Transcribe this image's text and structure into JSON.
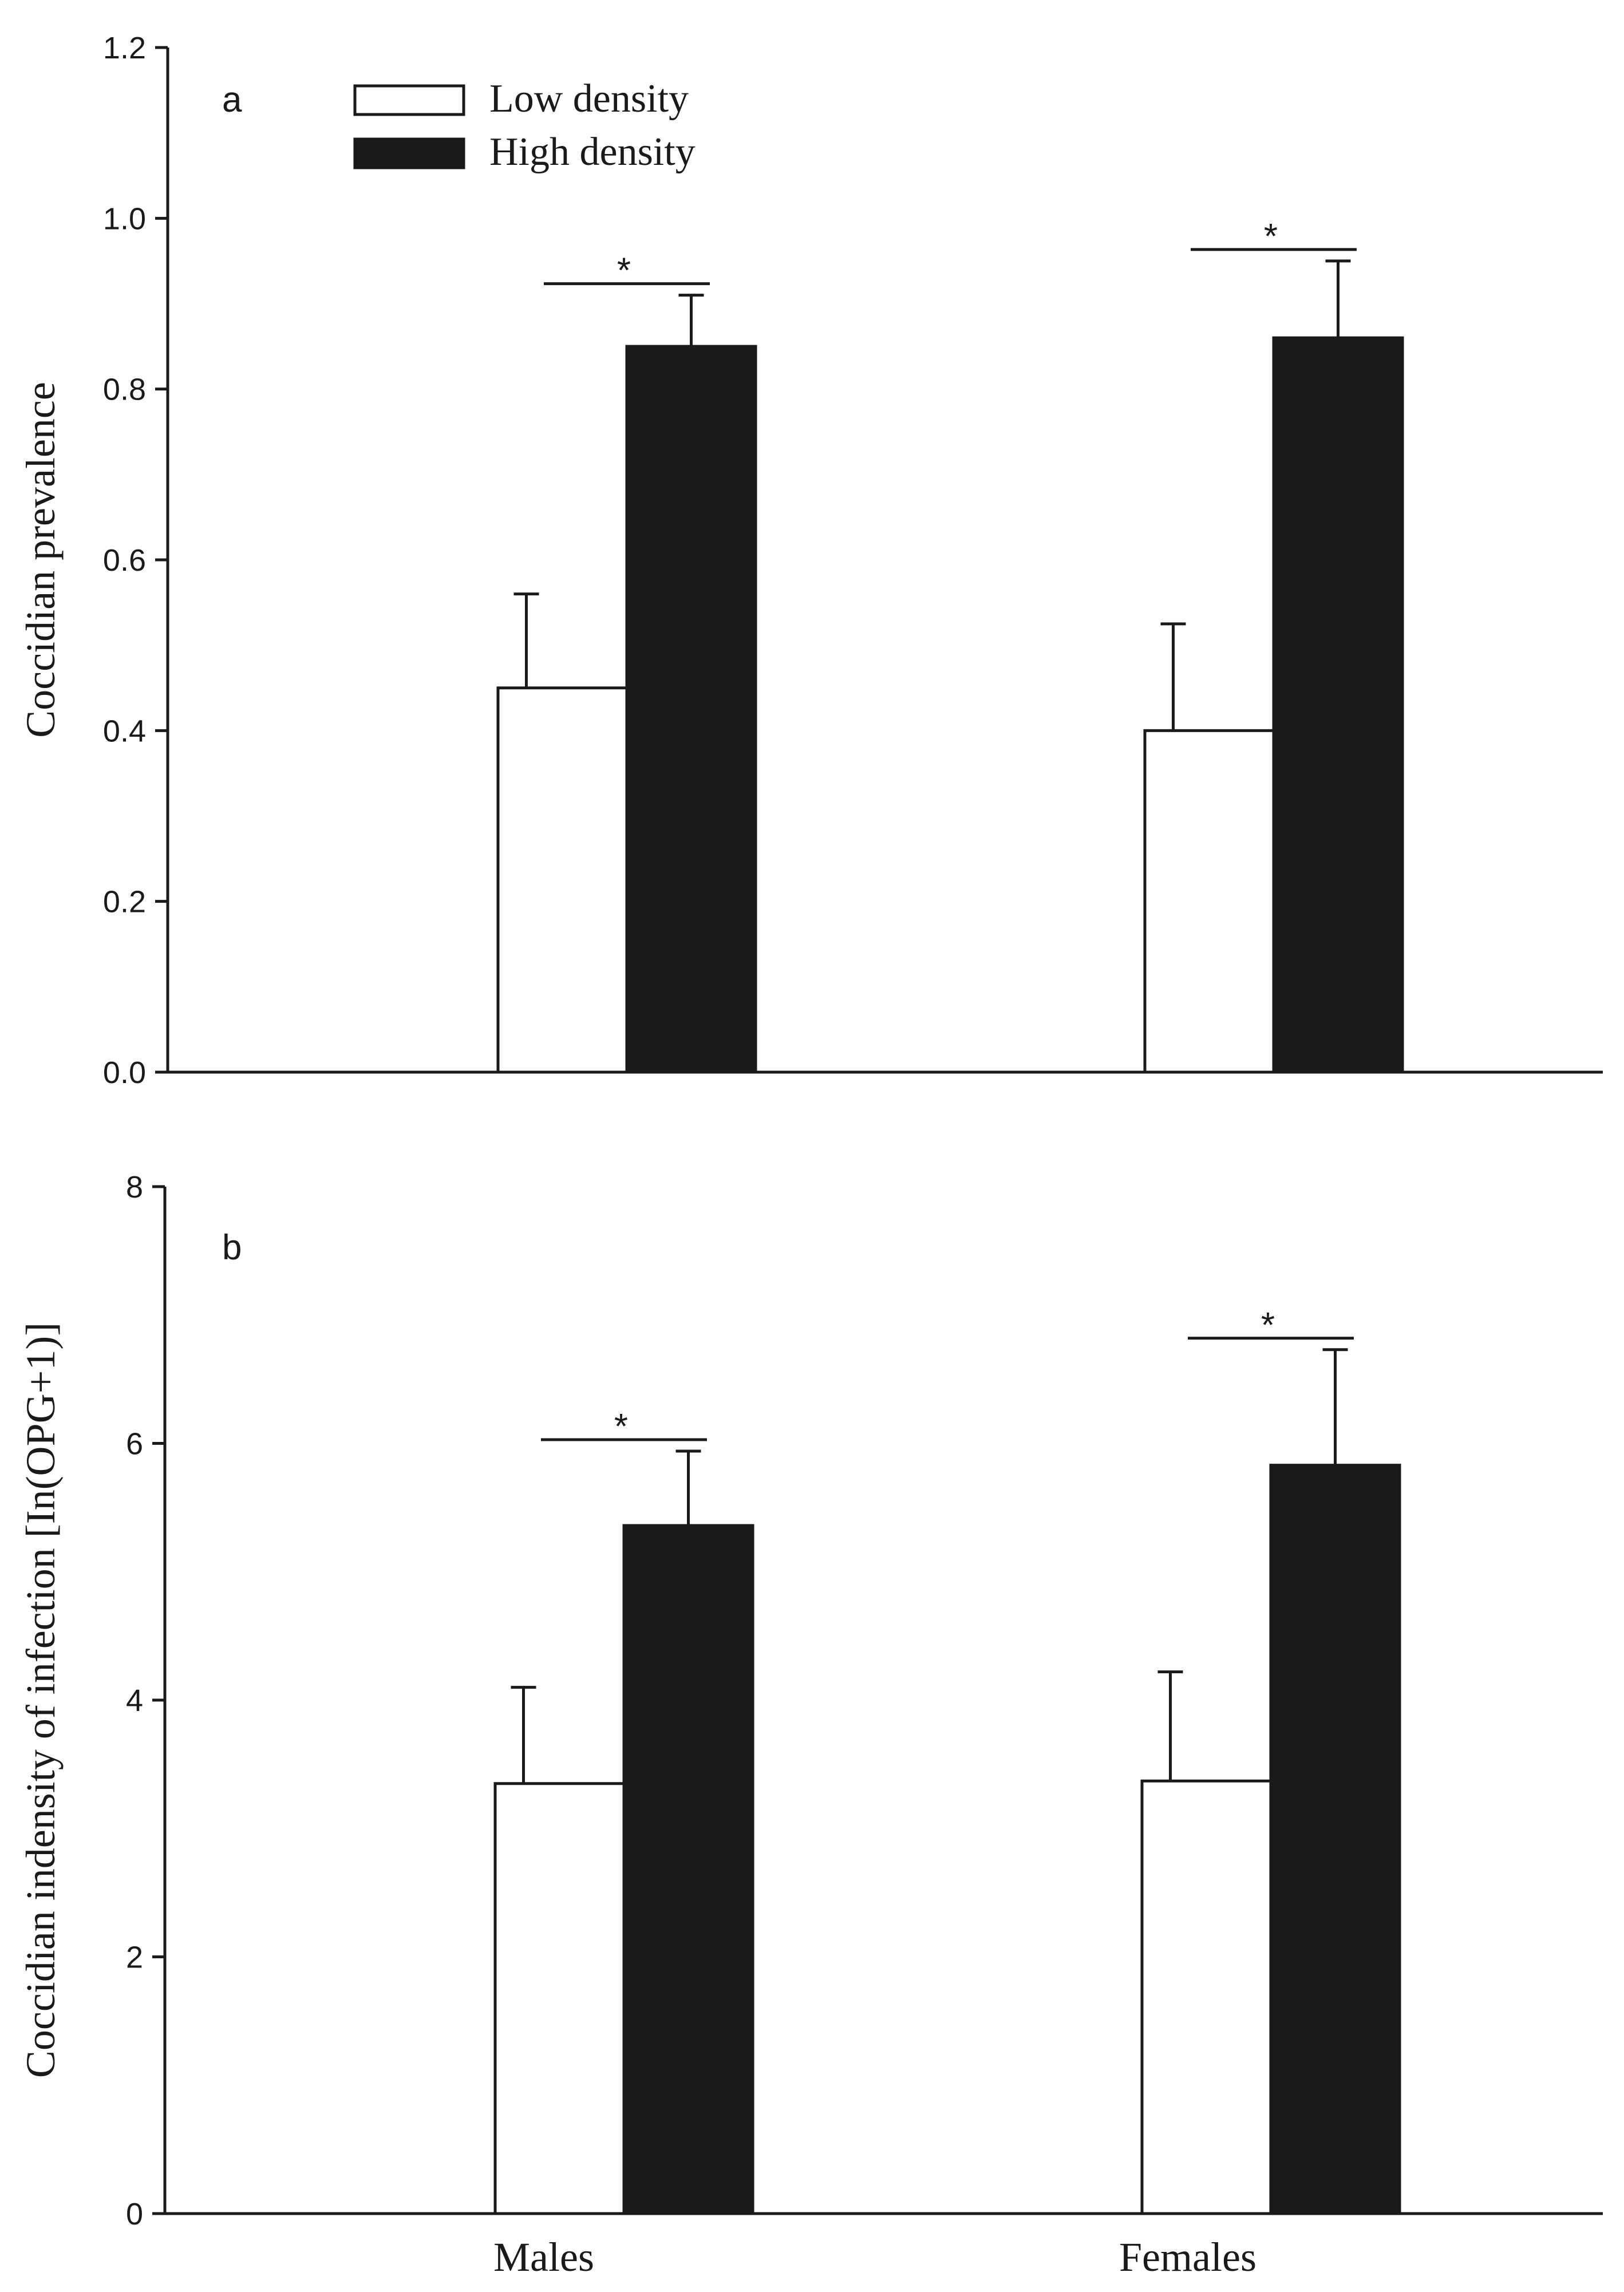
{
  "chart_data": [
    {
      "type": "bar",
      "panel_label": "a",
      "ylabel": "Coccidian prevalence",
      "xlabel": "",
      "ylim": [
        0,
        1.2
      ],
      "yticks": [
        "0.0",
        "0.2",
        "0.4",
        "0.6",
        "0.8",
        "1.0",
        "1.2"
      ],
      "categories": [
        "Males",
        "Females"
      ],
      "show_category_labels": false,
      "series": [
        {
          "name": "Low density",
          "color": "#ffffff",
          "values": [
            0.45,
            0.4
          ],
          "errors": [
            0.11,
            0.125
          ]
        },
        {
          "name": "High density",
          "color": "#1a1a1a",
          "values": [
            0.85,
            0.86
          ],
          "errors": [
            0.06,
            0.09
          ]
        }
      ],
      "significance": [
        "*",
        "*"
      ],
      "legend": {
        "position": "top-left",
        "entries": [
          "Low density",
          "High density"
        ]
      }
    },
    {
      "type": "bar",
      "panel_label": "b",
      "ylabel": "Coccidian indensity of infection [In(OPG+1)]",
      "xlabel": "",
      "ylim": [
        0,
        8
      ],
      "yticks": [
        "0",
        "2",
        "4",
        "6",
        "8"
      ],
      "categories": [
        "Males",
        "Females"
      ],
      "show_category_labels": true,
      "series": [
        {
          "name": "Low density",
          "color": "#ffffff",
          "values": [
            3.35,
            3.37
          ],
          "errors": [
            0.75,
            0.85
          ]
        },
        {
          "name": "High density",
          "color": "#1a1a1a",
          "values": [
            5.36,
            5.83
          ],
          "errors": [
            0.58,
            0.9
          ]
        }
      ],
      "significance": [
        "*",
        "*"
      ]
    }
  ]
}
